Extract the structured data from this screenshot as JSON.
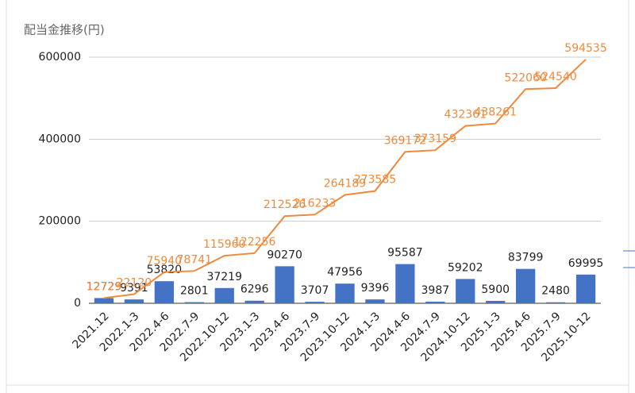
{
  "chart_data": {
    "type": "combo",
    "title": "配当金推移(円)",
    "categories": [
      "2021.12",
      "2022.1-3",
      "2022.4-6",
      "2022.7-9",
      "2022.10-12",
      "2023.1-3",
      "2023.4-6",
      "2023.7-9",
      "2023.10-12",
      "2024.1-3",
      "2024.4-6",
      "2024.7-9",
      "2024.10-12",
      "2025.1-3",
      "2025.4-6",
      "2025.7-9",
      "2025.10-12"
    ],
    "series": [
      {
        "type": "bar",
        "color": "#4472c4",
        "values": [
          12729,
          9391,
          53820,
          2801,
          37219,
          6296,
          90270,
          3707,
          47956,
          9396,
          95587,
          3987,
          59202,
          5900,
          83799,
          2480,
          69995
        ]
      },
      {
        "type": "line",
        "color": "#ef8a3c",
        "values": [
          12729,
          22120,
          75940,
          78741,
          115960,
          122256,
          212526,
          216233,
          264189,
          273585,
          369172,
          373159,
          432361,
          438261,
          522060,
          524540,
          594535
        ]
      }
    ],
    "ylim": [
      0,
      600000
    ],
    "yticks": [
      0,
      200000,
      400000,
      600000
    ],
    "grid": true
  }
}
